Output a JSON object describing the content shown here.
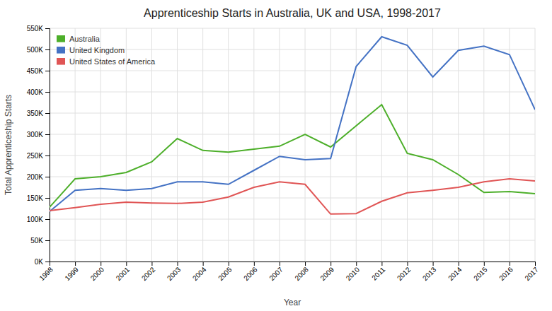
{
  "chart_data": {
    "type": "line",
    "title": "Apprenticeship Starts in Australia, UK and USA, 1998-2017",
    "x_label": "Year",
    "y_label": "Total Apprenticeship Starts",
    "x": [
      1998,
      1999,
      2000,
      2001,
      2002,
      2003,
      2004,
      2005,
      2006,
      2007,
      2008,
      2009,
      2010,
      2011,
      2012,
      2013,
      2014,
      2015,
      2016,
      2017
    ],
    "series": [
      {
        "name": "Australia",
        "color": "#4daf2a",
        "values": [
          128000,
          195000,
          200000,
          210000,
          235000,
          290000,
          262000,
          258000,
          265000,
          272000,
          300000,
          270000,
          320000,
          370000,
          255000,
          240000,
          205000,
          163000,
          165000,
          160000
        ]
      },
      {
        "name": "United Kingdom",
        "color": "#4472c4",
        "values": [
          118000,
          168000,
          172000,
          168000,
          172000,
          188000,
          188000,
          182000,
          215000,
          248000,
          240000,
          243000,
          460000,
          530000,
          510000,
          435000,
          498000,
          508000,
          488000,
          358000
        ]
      },
      {
        "name": "United States of America",
        "color": "#e05555",
        "values": [
          120000,
          127000,
          135000,
          140000,
          138000,
          137000,
          140000,
          152000,
          175000,
          188000,
          182000,
          112000,
          113000,
          142000,
          162000,
          168000,
          175000,
          188000,
          195000,
          190000
        ]
      }
    ],
    "xlim": [
      1998,
      2017
    ],
    "xticks": [
      1998,
      1999,
      2000,
      2001,
      2002,
      2003,
      2004,
      2005,
      2006,
      2007,
      2008,
      2009,
      2010,
      2011,
      2012,
      2013,
      2014,
      2015,
      2016,
      2017
    ],
    "ylim": [
      0,
      550000
    ],
    "yticks": [
      {
        "value": 0,
        "label": "0K"
      },
      {
        "value": 50000,
        "label": "50K"
      },
      {
        "value": 100000,
        "label": "100K"
      },
      {
        "value": 150000,
        "label": "150K"
      },
      {
        "value": 200000,
        "label": "200K"
      },
      {
        "value": 250000,
        "label": "250K"
      },
      {
        "value": 300000,
        "label": "300K"
      },
      {
        "value": 350000,
        "label": "350K"
      },
      {
        "value": 400000,
        "label": "400K"
      },
      {
        "value": 450000,
        "label": "450K"
      },
      {
        "value": 500000,
        "label": "500K"
      },
      {
        "value": 550000,
        "label": "550K"
      }
    ],
    "grid": true,
    "legend": "upper left"
  }
}
